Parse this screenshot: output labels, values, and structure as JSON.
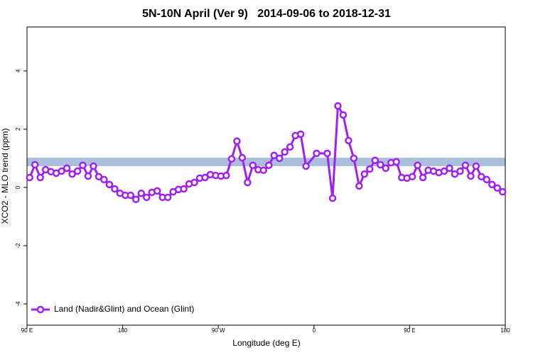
{
  "chart_data": {
    "type": "line",
    "title": "5N-10N April (Ver 9)   2014-09-06 to 2018-12-31",
    "x_label": "Longitude (deg E)",
    "y_label": "XCO2 - MLO trend (ppm)",
    "xlim": [
      90,
      540
    ],
    "ylim": [
      -4.73,
      5.51
    ],
    "xticks": [
      {
        "value": 90,
        "label": "90 E"
      },
      180,
      {
        "value": 270,
        "label": "90 W"
      },
      {
        "value": 360,
        "label": "0"
      },
      {
        "value": 450,
        "label": "90 E"
      },
      {
        "value": 540,
        "label": "180"
      }
    ],
    "yticks": [
      -4,
      -2,
      0,
      2,
      4
    ],
    "band": {
      "range": [
        0.73,
        1.02
      ],
      "color": "#a9bfdc"
    },
    "legend": "bottom-left",
    "x": [
      92.5,
      97.5,
      102.5,
      107.5,
      112.5,
      117.5,
      122.5,
      127.5,
      132.5,
      137.5,
      142.5,
      147.5,
      152.5,
      157.5,
      162.5,
      167.5,
      172.5,
      177.5,
      182.5,
      187.5,
      192.5,
      197.5,
      202.5,
      207.5,
      212.5,
      217.5,
      222.5,
      227.5,
      232.5,
      237.5,
      242.5,
      247.5,
      252.5,
      257.5,
      262.5,
      267.5,
      272.5,
      277.5,
      282.5,
      287.5,
      292.5,
      297.5,
      302.5,
      307.5,
      312.5,
      317.5,
      322.5,
      327.5,
      332.5,
      337.5,
      342.5,
      347.5,
      352.5,
      362.5,
      372.5,
      377.5,
      382.5,
      387.5,
      392.5,
      397.5,
      402.5,
      407.5,
      412.5,
      417.5,
      422.5,
      427.5,
      432.5,
      437.5,
      442.5,
      447.5,
      452.5,
      457.5,
      462.5,
      467.5,
      472.5,
      477.5,
      482.5,
      487.5,
      492.5,
      497.5,
      502.5,
      507.5,
      512.5,
      517.5,
      522.5,
      527.5,
      532.5,
      537.5
    ],
    "series": [
      {
        "name": "Land (Nadir&Glint) and Ocean (Glint)",
        "color": "#a020f0",
        "values": [
          0.34,
          0.78,
          0.34,
          0.61,
          0.54,
          0.49,
          0.56,
          0.66,
          0.46,
          0.56,
          0.76,
          0.39,
          0.73,
          0.37,
          0.27,
          0.1,
          -0.05,
          -0.2,
          -0.27,
          -0.27,
          -0.41,
          -0.2,
          -0.34,
          -0.17,
          -0.12,
          -0.34,
          -0.34,
          -0.15,
          -0.07,
          -0.05,
          0.12,
          0.17,
          0.32,
          0.34,
          0.44,
          0.41,
          0.39,
          0.41,
          0.98,
          1.59,
          1.02,
          0.17,
          0.76,
          0.61,
          0.59,
          0.76,
          1.1,
          1.0,
          1.22,
          1.39,
          1.78,
          1.83,
          0.73,
          1.17,
          1.17,
          -0.37,
          2.8,
          2.49,
          1.61,
          1.0,
          0.05,
          0.46,
          0.63,
          0.93,
          0.78,
          0.66,
          0.85,
          0.88,
          0.34,
          0.32,
          0.37,
          0.76,
          0.34,
          0.59,
          0.56,
          0.51,
          0.56,
          0.66,
          0.46,
          0.56,
          0.76,
          0.39,
          0.73,
          0.37,
          0.27,
          0.1,
          -0.02,
          -0.15
        ]
      }
    ]
  }
}
